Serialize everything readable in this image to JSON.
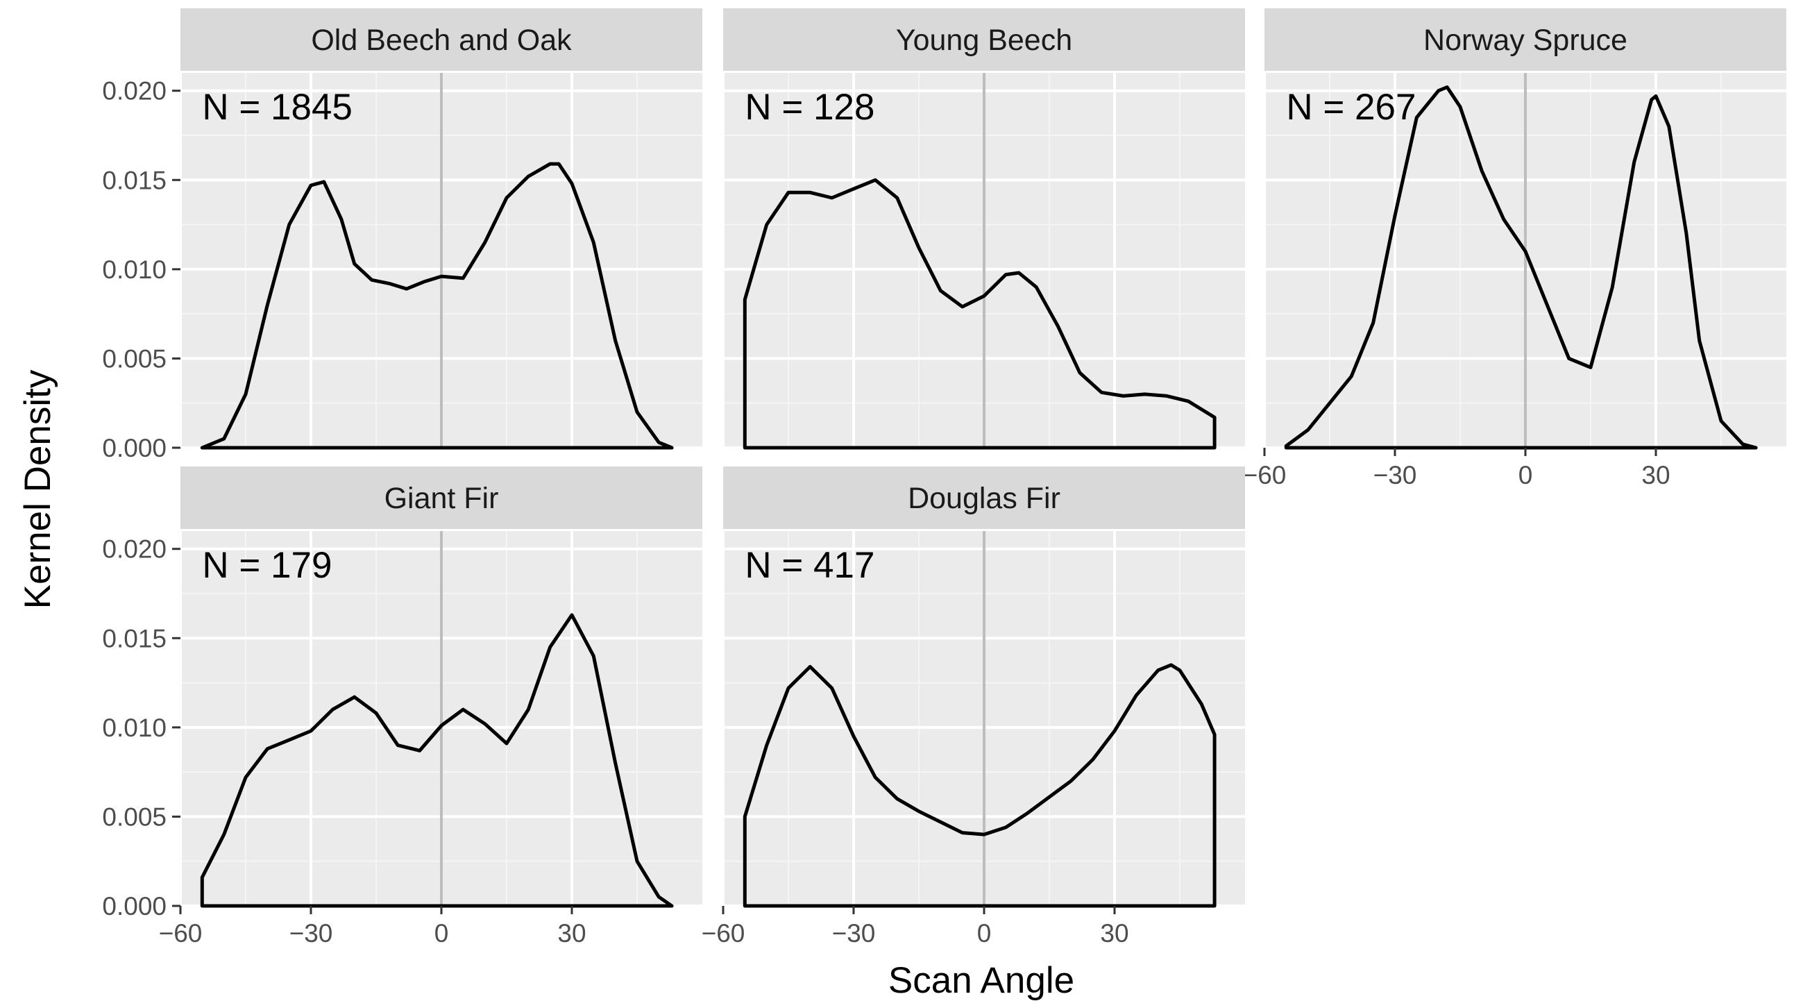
{
  "chart_data": {
    "type": "area",
    "xlabel": "Scan Angle",
    "ylabel": "Kernel Density",
    "xlim": [
      -60,
      60
    ],
    "ylim": [
      0,
      0.021
    ],
    "x_ticks": [
      -60,
      -30,
      0,
      30
    ],
    "x_tick_labels": [
      "−60",
      "−30",
      "0",
      "30"
    ],
    "y_ticks": [
      0,
      0.005,
      0.01,
      0.015,
      0.02
    ],
    "y_tick_labels": [
      "0.000",
      "0.005",
      "0.010",
      "0.015",
      "0.020"
    ],
    "reference_line_x": 0,
    "grid": true,
    "panels": [
      {
        "title": "Old Beech and Oak",
        "annotation": "N = 1845",
        "x": [
          -55,
          -50,
          -45,
          -40,
          -35,
          -30,
          -27,
          -23,
          -20,
          -16,
          -12,
          -8,
          -4,
          0,
          5,
          10,
          15,
          20,
          25,
          27,
          30,
          35,
          40,
          45,
          50,
          53
        ],
        "y": [
          0.0,
          0.0005,
          0.003,
          0.008,
          0.0125,
          0.0147,
          0.0149,
          0.0128,
          0.0103,
          0.0094,
          0.0092,
          0.0089,
          0.0093,
          0.0096,
          0.0095,
          0.0115,
          0.014,
          0.0152,
          0.0159,
          0.0159,
          0.0148,
          0.0115,
          0.006,
          0.002,
          0.0003,
          0.0
        ]
      },
      {
        "title": "Young Beech",
        "annotation": "N = 128",
        "x": [
          -55,
          -50,
          -45,
          -40,
          -35,
          -30,
          -25,
          -20,
          -15,
          -10,
          -5,
          0,
          5,
          8,
          12,
          17,
          22,
          27,
          32,
          37,
          42,
          47,
          53
        ],
        "y": [
          0.0083,
          0.0125,
          0.0143,
          0.0143,
          0.014,
          0.0145,
          0.015,
          0.014,
          0.0112,
          0.0088,
          0.0079,
          0.0085,
          0.0097,
          0.0098,
          0.009,
          0.0068,
          0.0042,
          0.0031,
          0.0029,
          0.003,
          0.0029,
          0.0026,
          0.0017
        ]
      },
      {
        "title": "Norway Spruce",
        "annotation": "N = 267",
        "x": [
          -55,
          -50,
          -45,
          -40,
          -35,
          -30,
          -25,
          -20,
          -18,
          -15,
          -10,
          -5,
          0,
          5,
          10,
          15,
          20,
          25,
          29,
          30,
          33,
          37,
          40,
          45,
          50,
          53
        ],
        "y": [
          0.0001,
          0.001,
          0.0025,
          0.004,
          0.007,
          0.013,
          0.0185,
          0.02,
          0.0202,
          0.0191,
          0.0155,
          0.0128,
          0.011,
          0.008,
          0.005,
          0.0045,
          0.009,
          0.016,
          0.0195,
          0.0197,
          0.018,
          0.012,
          0.006,
          0.0015,
          0.0002,
          0.0
        ]
      },
      {
        "title": "Giant Fir",
        "annotation": "N = 179",
        "x": [
          -55,
          -50,
          -45,
          -40,
          -35,
          -30,
          -25,
          -20,
          -15,
          -10,
          -5,
          0,
          5,
          10,
          15,
          20,
          25,
          30,
          35,
          40,
          45,
          50,
          53
        ],
        "y": [
          0.0016,
          0.004,
          0.0072,
          0.0088,
          0.0093,
          0.0098,
          0.011,
          0.0117,
          0.0108,
          0.009,
          0.0087,
          0.0101,
          0.011,
          0.0102,
          0.0091,
          0.011,
          0.0145,
          0.0163,
          0.014,
          0.008,
          0.0025,
          0.0005,
          0.0
        ]
      },
      {
        "title": "Douglas Fir",
        "annotation": "N = 417",
        "x": [
          -55,
          -50,
          -45,
          -40,
          -35,
          -30,
          -25,
          -20,
          -15,
          -10,
          -5,
          0,
          5,
          10,
          15,
          20,
          25,
          30,
          35,
          40,
          43,
          45,
          50,
          53
        ],
        "y": [
          0.005,
          0.009,
          0.0122,
          0.0134,
          0.0122,
          0.0095,
          0.0072,
          0.006,
          0.0053,
          0.0047,
          0.0041,
          0.004,
          0.0044,
          0.0052,
          0.0061,
          0.007,
          0.0082,
          0.0098,
          0.0118,
          0.0132,
          0.0135,
          0.0132,
          0.0113,
          0.0096
        ]
      }
    ]
  },
  "colors": {
    "panel_background": "#ebebeb",
    "strip_background": "#d9d9d9",
    "grid_major": "#ffffff",
    "grid_minor": "#f5f5f5",
    "reference_line": "#bdbdbd",
    "density_line": "#000000",
    "tick_text": "#4d4d4d"
  }
}
